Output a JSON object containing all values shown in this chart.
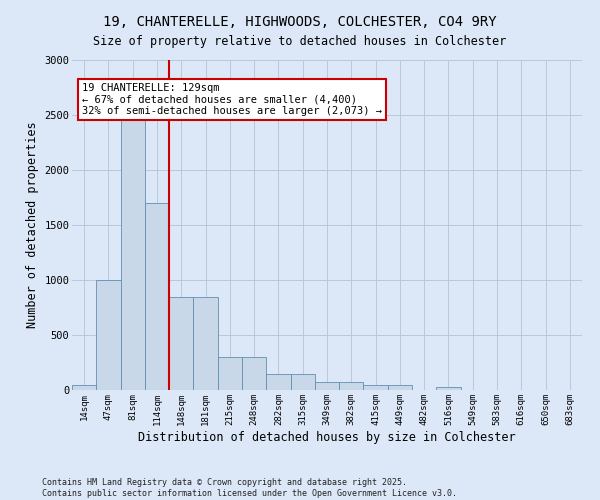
{
  "title_line1": "19, CHANTERELLE, HIGHWOODS, COLCHESTER, CO4 9RY",
  "title_line2": "Size of property relative to detached houses in Colchester",
  "xlabel": "Distribution of detached houses by size in Colchester",
  "ylabel": "Number of detached properties",
  "footer_line1": "Contains HM Land Registry data © Crown copyright and database right 2025.",
  "footer_line2": "Contains public sector information licensed under the Open Government Licence v3.0.",
  "categories": [
    "14sqm",
    "47sqm",
    "81sqm",
    "114sqm",
    "148sqm",
    "181sqm",
    "215sqm",
    "248sqm",
    "282sqm",
    "315sqm",
    "349sqm",
    "382sqm",
    "415sqm",
    "449sqm",
    "482sqm",
    "516sqm",
    "549sqm",
    "583sqm",
    "616sqm",
    "650sqm",
    "683sqm"
  ],
  "values": [
    50,
    1000,
    2500,
    1700,
    850,
    850,
    300,
    300,
    150,
    150,
    75,
    75,
    50,
    50,
    0,
    30,
    0,
    0,
    0,
    0,
    0
  ],
  "bar_color": "#c8d8e8",
  "bar_edge_color": "#6090b0",
  "red_line_x": 3.5,
  "annotation_text": "19 CHANTERELLE: 129sqm\n← 67% of detached houses are smaller (4,400)\n32% of semi-detached houses are larger (2,073) →",
  "annotation_box_color": "#ffffff",
  "annotation_box_edge": "#cc0000",
  "red_line_color": "#cc0000",
  "ylim": [
    0,
    3000
  ],
  "yticks": [
    0,
    500,
    1000,
    1500,
    2000,
    2500,
    3000
  ],
  "background_color": "#dce8f8",
  "grid_color": "#b8c8dc"
}
